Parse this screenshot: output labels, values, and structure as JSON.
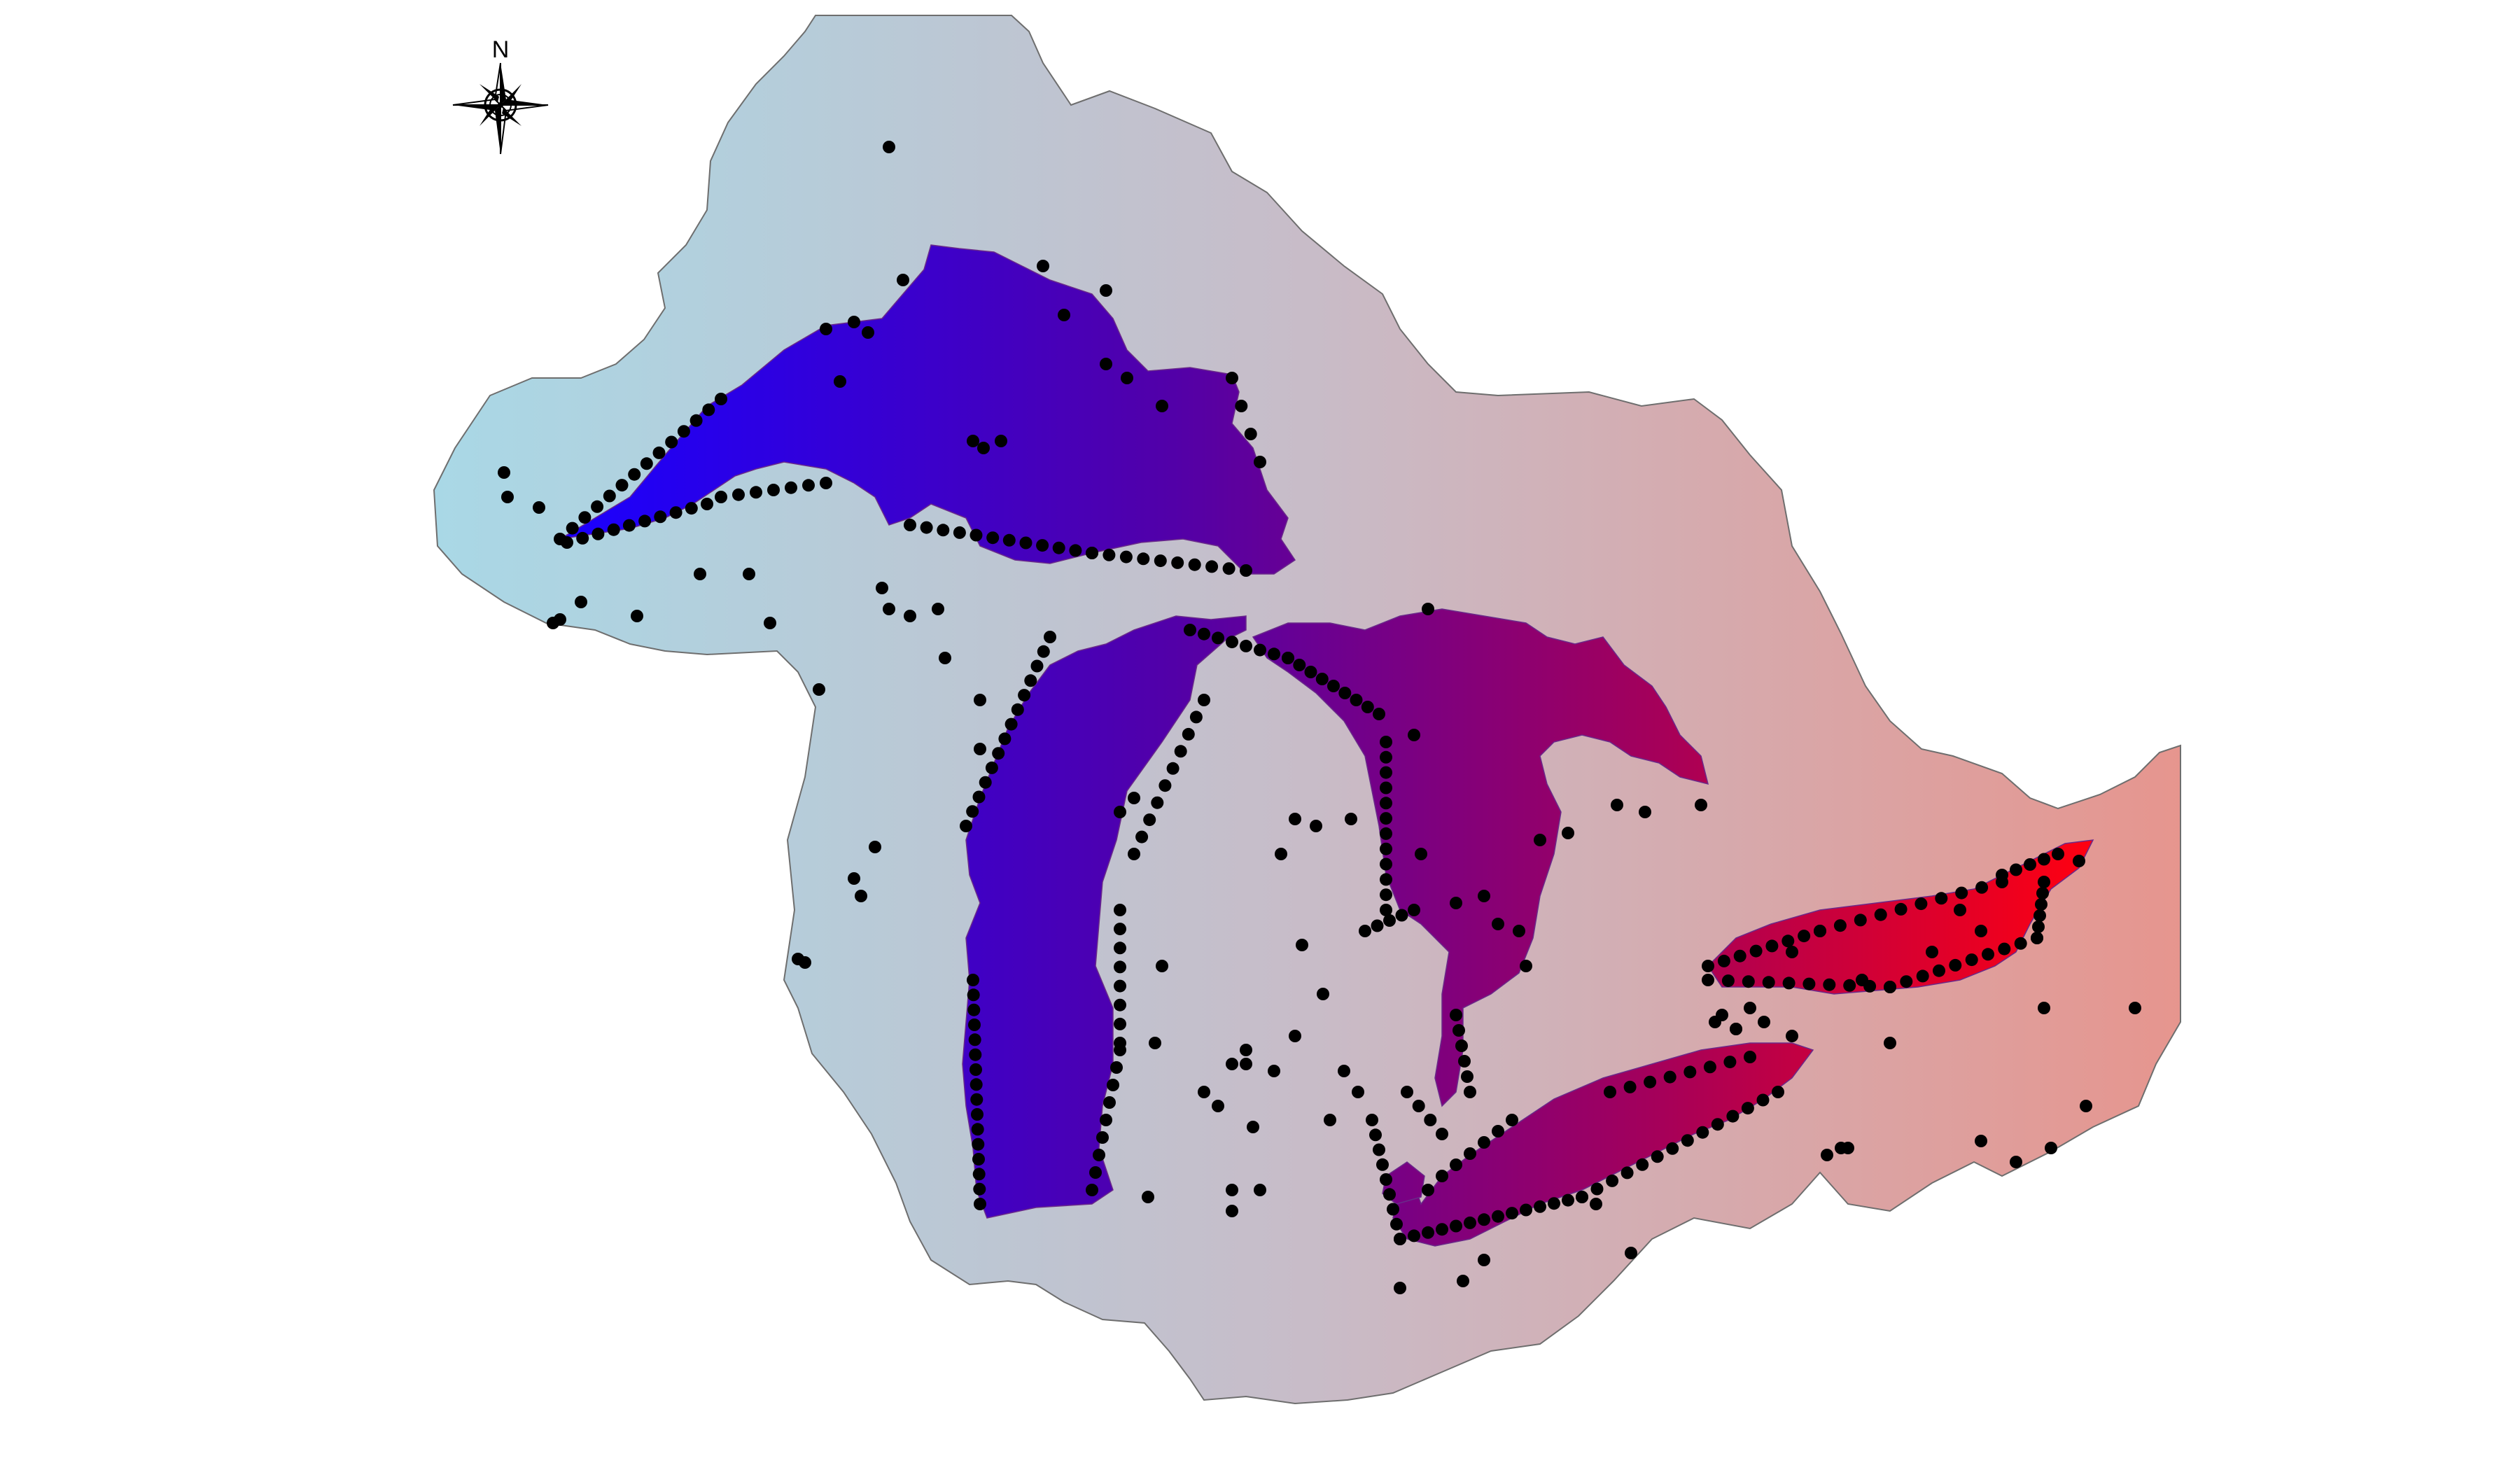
{
  "compass": {
    "north_label": "N"
  },
  "colors": {
    "basin_west": "#a9d8e6",
    "basin_east": "#e6958e",
    "lake_west": "#1a00ff",
    "lake_mid": "#5200a8",
    "lake_east": "#ff0010",
    "basin_outline": "#6e6e6e",
    "sample_point": "#000000"
  },
  "map": {
    "regions": [
      "great-lakes-basin",
      "lake-superior",
      "lake-michigan",
      "lake-huron",
      "lake-erie",
      "lake-ontario"
    ],
    "marker": "sample-site-dot"
  }
}
